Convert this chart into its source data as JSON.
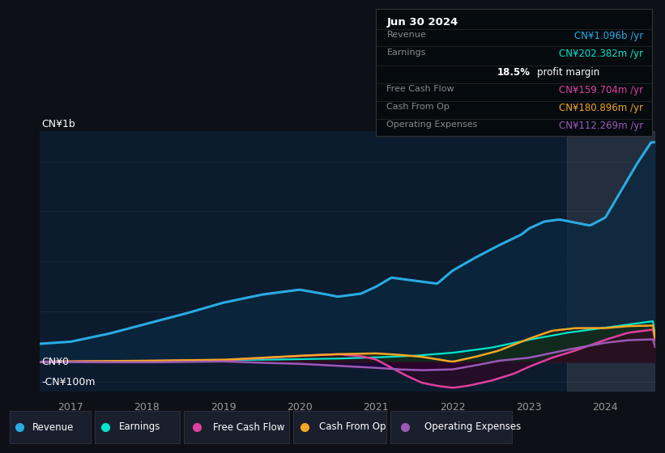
{
  "bg_color": "#0d1117",
  "plot_bg_color": "#0d1b2e",
  "grid_color": "#1a2a40",
  "revenue_color": "#29abe2",
  "earnings_color": "#00e5cc",
  "fcf_color": "#e040a0",
  "cashop_color": "#f5a623",
  "opex_color": "#9b59b6",
  "revenue_fill": "#0a2840",
  "earnings_fill": "#003322",
  "fcf_fill": "#3a0022",
  "cashop_fill": "#3a2000",
  "opex_fill": "#220040",
  "shade_color": "#888888",
  "shade_alpha": 0.18,
  "shade_start": 2023.5,
  "ylabel_top": "CN¥1b",
  "ylabel_zero": "CN¥0",
  "ylabel_neg": "-CN¥100m",
  "title_date": "Jun 30 2024",
  "ylim_min": -150000000,
  "ylim_max": 1150000000,
  "xmin": 2016.6,
  "xmax": 2024.65,
  "x_years": [
    2017,
    2018,
    2019,
    2020,
    2021,
    2022,
    2023,
    2024
  ],
  "legend": [
    {
      "label": "Revenue",
      "color": "#29abe2"
    },
    {
      "label": "Earnings",
      "color": "#00e5cc"
    },
    {
      "label": "Free Cash Flow",
      "color": "#e040a0"
    },
    {
      "label": "Cash From Op",
      "color": "#f5a623"
    },
    {
      "label": "Operating Expenses",
      "color": "#9b59b6"
    }
  ],
  "infobox_bg": "#050a0f",
  "infobox_date": "Jun 30 2024",
  "infobox_rows": [
    {
      "label": "Revenue",
      "value": "CN¥1.096b /yr",
      "vcolor": "#29abe2",
      "is_margin": false
    },
    {
      "label": "Earnings",
      "value": "CN¥202.382m /yr",
      "vcolor": "#00e5cc",
      "is_margin": false
    },
    {
      "label": "",
      "value": "18.5% profit margin",
      "vcolor": "#ffffff",
      "is_margin": true,
      "bold_part": "18.5%",
      "regular_part": " profit margin"
    },
    {
      "label": "Free Cash Flow",
      "value": "CN¥159.704m /yr",
      "vcolor": "#e040a0",
      "is_margin": false
    },
    {
      "label": "Cash From Op",
      "value": "CN¥180.896m /yr",
      "vcolor": "#f5a623",
      "is_margin": false
    },
    {
      "label": "Operating Expenses",
      "value": "CN¥112.269m /yr",
      "vcolor": "#9b59b6",
      "is_margin": false
    }
  ]
}
